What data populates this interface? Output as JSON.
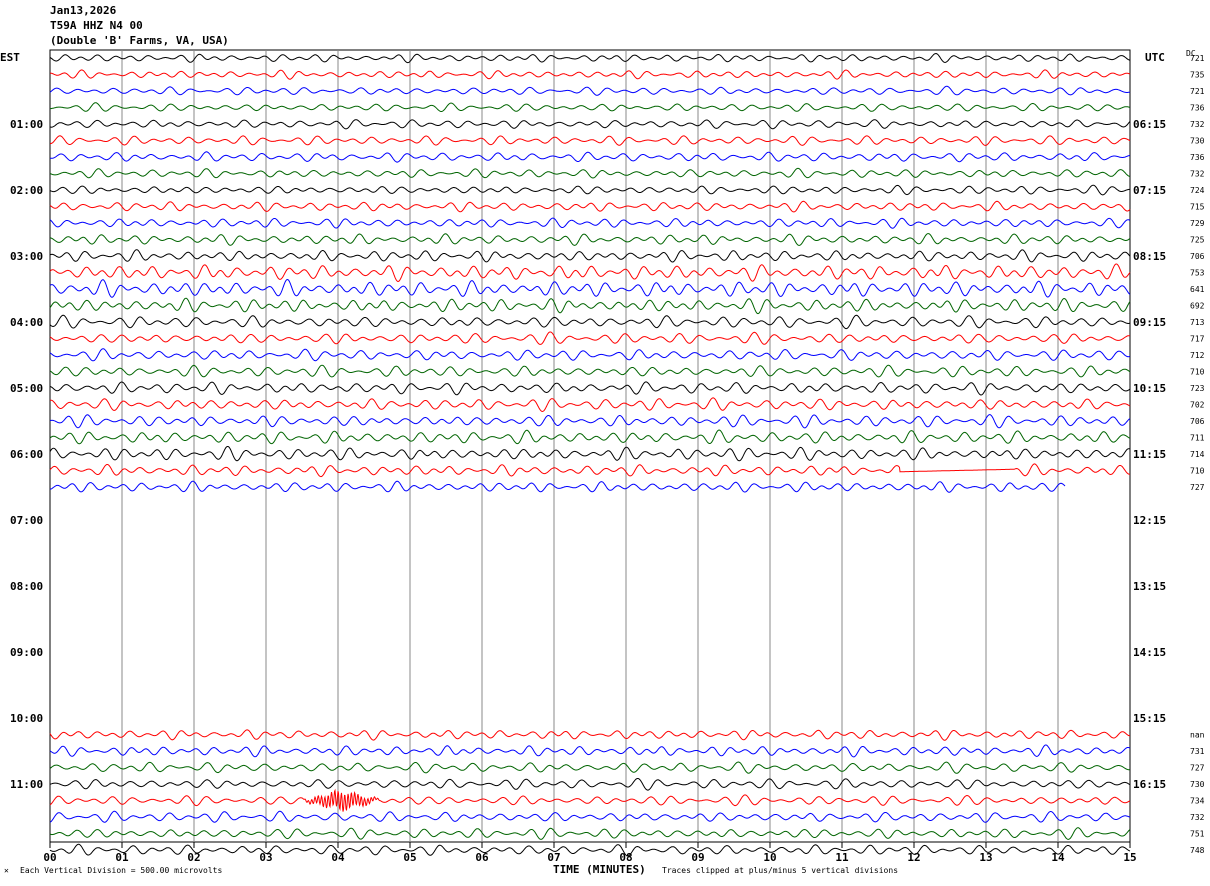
{
  "header": {
    "date": "Jan13,2026",
    "station": "T59A HHZ N4 00",
    "location": "(Double 'B' Farms, VA, USA)"
  },
  "axis": {
    "left_title": "EST",
    "right_title": "UTC",
    "dc_label": "DC",
    "x_title": "TIME (MINUTES)",
    "scale_note": "Each Vertical Division = 500.00 microvolts",
    "clip_note": "Traces clipped at plus/minus 5 vertical divisions",
    "corner_mark": "✕"
  },
  "chart_data": {
    "type": "line",
    "title": "",
    "xlabel": "TIME (MINUTES)",
    "x_ticks": [
      "00",
      "01",
      "02",
      "03",
      "04",
      "05",
      "06",
      "07",
      "08",
      "09",
      "10",
      "11",
      "12",
      "13",
      "14",
      "15"
    ],
    "xlim": [
      0,
      15
    ],
    "grid": "vertical lines every minute",
    "row_minutes": 15,
    "trace_colors": [
      "#000000",
      "#ff0000",
      "#0000ff",
      "#006400"
    ],
    "left_hour_labels": [
      "01:00",
      "02:00",
      "03:00",
      "04:00",
      "05:00",
      "06:00",
      "07:00",
      "08:00",
      "09:00",
      "10:00",
      "11:00"
    ],
    "right_hour_labels": [
      "06:15",
      "07:15",
      "08:15",
      "09:15",
      "10:15",
      "11:15",
      "12:15",
      "13:15",
      "14:15",
      "15:15",
      "16:15"
    ],
    "traces": [
      {
        "row": 0,
        "dc": "721",
        "amp": 1.0
      },
      {
        "row": 1,
        "dc": "735",
        "amp": 1.0
      },
      {
        "row": 2,
        "dc": "721",
        "amp": 1.0
      },
      {
        "row": 3,
        "dc": "736",
        "amp": 1.0
      },
      {
        "row": 4,
        "dc": "732",
        "amp": 1.1
      },
      {
        "row": 5,
        "dc": "730",
        "amp": 1.1
      },
      {
        "row": 6,
        "dc": "736",
        "amp": 1.2
      },
      {
        "row": 7,
        "dc": "732",
        "amp": 1.1
      },
      {
        "row": 8,
        "dc": "724",
        "amp": 1.1
      },
      {
        "row": 9,
        "dc": "715",
        "amp": 1.2
      },
      {
        "row": 10,
        "dc": "729",
        "amp": 1.2
      },
      {
        "row": 11,
        "dc": "725",
        "amp": 1.3
      },
      {
        "row": 12,
        "dc": "706",
        "amp": 1.4
      },
      {
        "row": 13,
        "dc": "753",
        "amp": 1.9
      },
      {
        "row": 14,
        "dc": "641",
        "amp": 2.0
      },
      {
        "row": 15,
        "dc": "692",
        "amp": 1.7
      },
      {
        "row": 16,
        "dc": "713",
        "amp": 1.5
      },
      {
        "row": 17,
        "dc": "717",
        "amp": 1.4
      },
      {
        "row": 18,
        "dc": "712",
        "amp": 1.4
      },
      {
        "row": 19,
        "dc": "710",
        "amp": 1.4
      },
      {
        "row": 20,
        "dc": "723",
        "amp": 1.5
      },
      {
        "row": 21,
        "dc": "702",
        "amp": 1.5
      },
      {
        "row": 22,
        "dc": "706",
        "amp": 1.5
      },
      {
        "row": 23,
        "dc": "711",
        "amp": 1.6
      },
      {
        "row": 24,
        "dc": "714",
        "amp": 1.6
      },
      {
        "row": 25,
        "dc": "710",
        "amp": 1.4,
        "flat_from": 11.8,
        "flat_to": 13.4
      },
      {
        "row": 26,
        "dc": "727",
        "amp": 1.3,
        "end": 14.1
      },
      {
        "row": 41,
        "dc": "nan",
        "amp": 1.2
      },
      {
        "row": 42,
        "dc": "731",
        "amp": 1.3
      },
      {
        "row": 43,
        "dc": "727",
        "amp": 1.3
      },
      {
        "row": 44,
        "dc": "730",
        "amp": 1.3
      },
      {
        "row": 45,
        "dc": "734",
        "amp": 1.2,
        "burst_from": 3.5,
        "burst_to": 4.6
      },
      {
        "row": 46,
        "dc": "732",
        "amp": 1.3
      },
      {
        "row": 47,
        "dc": "751",
        "amp": 1.3
      },
      {
        "row": 48,
        "dc": "748",
        "amp": 1.3
      }
    ]
  }
}
